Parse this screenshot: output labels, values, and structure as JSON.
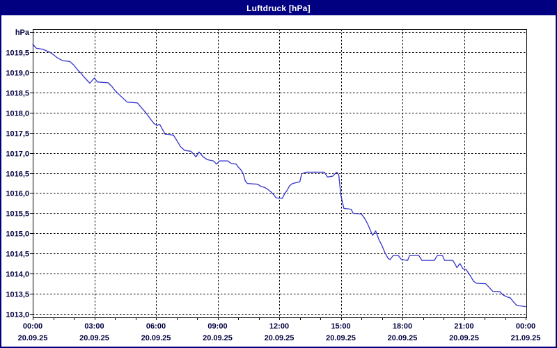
{
  "window": {
    "title": "Luftdruck [hPa]"
  },
  "colors": {
    "titlebar_bg": "#000080",
    "titlebar_text": "#ffffff",
    "outer_border": "#000080",
    "chart_background": "#ffffff",
    "plot_frame": "#000000",
    "gridline": "#000000",
    "axis_text": "#000040",
    "series_line": "#3333cc"
  },
  "chart_data": {
    "type": "line",
    "title": "Luftdruck [hPa]",
    "ylabel": "hPa",
    "xlabel": "",
    "grid": "dashed",
    "legend_position": "none",
    "y_axis": {
      "min": 1012.9,
      "max": 1020.1,
      "unit_label": "hPa",
      "ticks": [
        {
          "v": 1013.0,
          "label": "1013,0"
        },
        {
          "v": 1013.5,
          "label": "1013,5"
        },
        {
          "v": 1014.0,
          "label": "1014,0"
        },
        {
          "v": 1014.5,
          "label": "1014,5"
        },
        {
          "v": 1015.0,
          "label": "1015,0"
        },
        {
          "v": 1015.5,
          "label": "1015,5"
        },
        {
          "v": 1016.0,
          "label": "1016,0"
        },
        {
          "v": 1016.5,
          "label": "1016,5"
        },
        {
          "v": 1017.0,
          "label": "1017,0"
        },
        {
          "v": 1017.5,
          "label": "1017,5"
        },
        {
          "v": 1018.0,
          "label": "1018,0"
        },
        {
          "v": 1018.5,
          "label": "1018,5"
        },
        {
          "v": 1019.0,
          "label": "1019,0"
        },
        {
          "v": 1019.5,
          "label": "1019,5"
        },
        {
          "v": 1020.0,
          "label": ""
        }
      ]
    },
    "x_axis": {
      "min_hours": 0,
      "max_hours": 24,
      "minor_tick_every_hours": 1,
      "gridline_every_hours": 3,
      "ticks": [
        {
          "hour": 0,
          "time": "00:00",
          "date": "20.09.25"
        },
        {
          "hour": 3,
          "time": "03:00",
          "date": "20.09.25"
        },
        {
          "hour": 6,
          "time": "06:00",
          "date": "20.09.25"
        },
        {
          "hour": 9,
          "time": "09:00",
          "date": "20.09.25"
        },
        {
          "hour": 12,
          "time": "12:00",
          "date": "20.09.25"
        },
        {
          "hour": 15,
          "time": "15:00",
          "date": "20.09.25"
        },
        {
          "hour": 18,
          "time": "18:00",
          "date": "20.09.25"
        },
        {
          "hour": 21,
          "time": "21:00",
          "date": "20.09.25"
        },
        {
          "hour": 24,
          "time": "00:00",
          "date": "21.09.25"
        }
      ]
    },
    "series": [
      {
        "name": "Luftdruck",
        "unit": "hPa",
        "points": [
          [
            0.0,
            1019.7
          ],
          [
            0.17,
            1019.6
          ],
          [
            0.5,
            1019.57
          ],
          [
            0.83,
            1019.5
          ],
          [
            1.0,
            1019.44
          ],
          [
            1.2,
            1019.36
          ],
          [
            1.45,
            1019.29
          ],
          [
            1.8,
            1019.27
          ],
          [
            2.0,
            1019.18
          ],
          [
            2.2,
            1019.05
          ],
          [
            2.35,
            1018.98
          ],
          [
            2.5,
            1018.88
          ],
          [
            2.65,
            1018.8
          ],
          [
            2.78,
            1018.73
          ],
          [
            3.0,
            1018.86
          ],
          [
            3.15,
            1018.76
          ],
          [
            3.67,
            1018.74
          ],
          [
            3.85,
            1018.65
          ],
          [
            4.0,
            1018.55
          ],
          [
            4.2,
            1018.45
          ],
          [
            4.35,
            1018.38
          ],
          [
            4.6,
            1018.26
          ],
          [
            5.1,
            1018.24
          ],
          [
            5.3,
            1018.12
          ],
          [
            5.5,
            1018.0
          ],
          [
            5.7,
            1017.86
          ],
          [
            5.9,
            1017.73
          ],
          [
            6.05,
            1017.68
          ],
          [
            6.18,
            1017.71
          ],
          [
            6.3,
            1017.6
          ],
          [
            6.45,
            1017.46
          ],
          [
            6.85,
            1017.44
          ],
          [
            7.0,
            1017.32
          ],
          [
            7.2,
            1017.15
          ],
          [
            7.4,
            1017.06
          ],
          [
            7.7,
            1017.04
          ],
          [
            7.85,
            1016.96
          ],
          [
            7.95,
            1016.9
          ],
          [
            8.1,
            1017.02
          ],
          [
            8.3,
            1016.9
          ],
          [
            8.5,
            1016.83
          ],
          [
            8.8,
            1016.8
          ],
          [
            8.95,
            1016.72
          ],
          [
            9.1,
            1016.8
          ],
          [
            9.5,
            1016.8
          ],
          [
            9.65,
            1016.74
          ],
          [
            9.9,
            1016.72
          ],
          [
            10.0,
            1016.65
          ],
          [
            10.15,
            1016.57
          ],
          [
            10.25,
            1016.48
          ],
          [
            10.35,
            1016.3
          ],
          [
            10.45,
            1016.24
          ],
          [
            10.95,
            1016.22
          ],
          [
            11.1,
            1016.17
          ],
          [
            11.3,
            1016.14
          ],
          [
            11.45,
            1016.09
          ],
          [
            11.6,
            1016.03
          ],
          [
            11.75,
            1015.95
          ],
          [
            11.85,
            1015.88
          ],
          [
            12.15,
            1015.87
          ],
          [
            12.25,
            1015.97
          ],
          [
            12.4,
            1016.08
          ],
          [
            12.5,
            1016.18
          ],
          [
            12.65,
            1016.24
          ],
          [
            13.0,
            1016.28
          ],
          [
            13.1,
            1016.48
          ],
          [
            13.3,
            1016.52
          ],
          [
            14.2,
            1016.52
          ],
          [
            14.35,
            1016.4
          ],
          [
            14.6,
            1016.42
          ],
          [
            14.8,
            1016.52
          ],
          [
            14.9,
            1016.45
          ],
          [
            15.0,
            1015.95
          ],
          [
            15.15,
            1015.62
          ],
          [
            15.5,
            1015.6
          ],
          [
            15.6,
            1015.5
          ],
          [
            16.0,
            1015.48
          ],
          [
            16.15,
            1015.38
          ],
          [
            16.3,
            1015.24
          ],
          [
            16.45,
            1015.06
          ],
          [
            16.55,
            1014.95
          ],
          [
            16.7,
            1015.06
          ],
          [
            16.85,
            1014.85
          ],
          [
            17.0,
            1014.7
          ],
          [
            17.15,
            1014.52
          ],
          [
            17.3,
            1014.38
          ],
          [
            17.4,
            1014.35
          ],
          [
            17.55,
            1014.45
          ],
          [
            17.8,
            1014.45
          ],
          [
            17.95,
            1014.35
          ],
          [
            18.25,
            1014.33
          ],
          [
            18.35,
            1014.45
          ],
          [
            18.8,
            1014.45
          ],
          [
            18.95,
            1014.33
          ],
          [
            19.55,
            1014.33
          ],
          [
            19.7,
            1014.45
          ],
          [
            19.95,
            1014.45
          ],
          [
            20.05,
            1014.33
          ],
          [
            20.45,
            1014.33
          ],
          [
            20.55,
            1014.25
          ],
          [
            20.65,
            1014.15
          ],
          [
            20.8,
            1014.25
          ],
          [
            20.95,
            1014.12
          ],
          [
            21.1,
            1014.1
          ],
          [
            21.3,
            1013.95
          ],
          [
            21.45,
            1013.82
          ],
          [
            21.6,
            1013.76
          ],
          [
            22.05,
            1013.75
          ],
          [
            22.2,
            1013.67
          ],
          [
            22.4,
            1013.56
          ],
          [
            22.75,
            1013.55
          ],
          [
            22.9,
            1013.47
          ],
          [
            23.1,
            1013.42
          ],
          [
            23.25,
            1013.4
          ],
          [
            23.4,
            1013.3
          ],
          [
            23.55,
            1013.22
          ],
          [
            23.7,
            1013.2
          ],
          [
            24.0,
            1013.18
          ]
        ]
      }
    ]
  }
}
